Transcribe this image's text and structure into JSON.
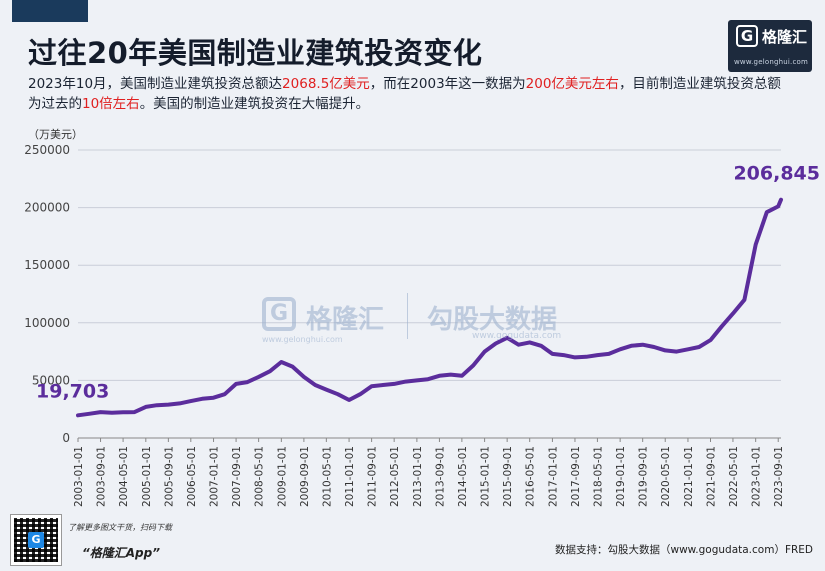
{
  "header": {
    "title": "过往20年美国制造业建筑投资变化",
    "brand_name": "格隆汇",
    "brand_url": "www.gelonghui.com",
    "brand_glyph": "G"
  },
  "description": {
    "part1": "2023年10月，美国制造业建筑投资总额达",
    "hl1": "2068.5亿美元",
    "part2": "，而在2003年这一数据为",
    "hl2": "200亿美元左右",
    "part3": "，目前制造业建筑投资总额为过去的",
    "hl3": "10倍左右",
    "part4": "。美国的制造业建筑投资在大幅提升。"
  },
  "watermark": {
    "name": "格隆汇",
    "url": "www.gelonghui.com",
    "name2": "勾股大数据",
    "url2": "www.gogudata.com"
  },
  "footer": {
    "note": "了解更多图文干货，扫码下载",
    "app": "“格隆汇App”",
    "source": "数据支持：勾股大数据（www.gogudata.com）FRED"
  },
  "colors": {
    "line": "#5b2d9c",
    "highlight": "#e02020",
    "grid": "#c9ced8",
    "background": "#eef1f6"
  },
  "chart_data": {
    "type": "line",
    "unit_label": "（万美元）",
    "ylim": [
      0,
      250000
    ],
    "yticks": [
      0,
      50000,
      100000,
      150000,
      200000,
      250000
    ],
    "xtick_labels": [
      "2003-01-01",
      "2003-09-01",
      "2004-05-01",
      "2005-01-01",
      "2005-09-01",
      "2006-05-01",
      "2007-01-01",
      "2007-09-01",
      "2008-05-01",
      "2009-01-01",
      "2009-09-01",
      "2010-05-01",
      "2011-01-01",
      "2011-09-01",
      "2012-05-01",
      "2013-01-01",
      "2013-09-01",
      "2014-05-01",
      "2015-01-01",
      "2015-09-01",
      "2016-05-01",
      "2017-01-01",
      "2017-09-01",
      "2018-05-01",
      "2019-01-01",
      "2019-09-01",
      "2020-05-01",
      "2021-01-01",
      "2021-09-01",
      "2022-05-01",
      "2023-01-01",
      "2023-09-01"
    ],
    "grid": "horizontal",
    "annotations": [
      {
        "text": "19,703",
        "x": "2003-01-01",
        "y": 19703,
        "color": "#5b2d9c"
      },
      {
        "text": "206,845",
        "x": "2023-10-01",
        "y": 206845,
        "color": "#5b2d9c"
      }
    ],
    "series": [
      {
        "points": [
          [
            "2003-01-01",
            19703
          ],
          [
            "2003-05-01",
            21000
          ],
          [
            "2003-09-01",
            22500
          ],
          [
            "2004-01-01",
            22000
          ],
          [
            "2004-05-01",
            22300
          ],
          [
            "2004-09-01",
            22500
          ],
          [
            "2005-01-01",
            27000
          ],
          [
            "2005-05-01",
            28500
          ],
          [
            "2005-09-01",
            29000
          ],
          [
            "2006-01-01",
            30000
          ],
          [
            "2006-05-01",
            32000
          ],
          [
            "2006-09-01",
            34000
          ],
          [
            "2007-01-01",
            35000
          ],
          [
            "2007-05-01",
            38000
          ],
          [
            "2007-09-01",
            47000
          ],
          [
            "2008-01-01",
            48500
          ],
          [
            "2008-05-01",
            53000
          ],
          [
            "2008-09-01",
            58000
          ],
          [
            "2009-01-01",
            66000
          ],
          [
            "2009-05-01",
            62000
          ],
          [
            "2009-09-01",
            53000
          ],
          [
            "2010-01-01",
            46000
          ],
          [
            "2010-05-01",
            42000
          ],
          [
            "2010-09-01",
            38000
          ],
          [
            "2011-01-01",
            33000
          ],
          [
            "2011-05-01",
            38000
          ],
          [
            "2011-09-01",
            45000
          ],
          [
            "2012-01-01",
            46000
          ],
          [
            "2012-05-01",
            47000
          ],
          [
            "2012-09-01",
            49000
          ],
          [
            "2013-01-01",
            50000
          ],
          [
            "2013-05-01",
            51000
          ],
          [
            "2013-09-01",
            54000
          ],
          [
            "2014-01-01",
            55000
          ],
          [
            "2014-05-01",
            54000
          ],
          [
            "2014-09-01",
            63000
          ],
          [
            "2015-01-01",
            75000
          ],
          [
            "2015-05-01",
            82000
          ],
          [
            "2015-09-01",
            87000
          ],
          [
            "2016-01-01",
            81000
          ],
          [
            "2016-05-01",
            83000
          ],
          [
            "2016-09-01",
            80000
          ],
          [
            "2017-01-01",
            73000
          ],
          [
            "2017-05-01",
            72000
          ],
          [
            "2017-09-01",
            70000
          ],
          [
            "2018-01-01",
            70500
          ],
          [
            "2018-05-01",
            72000
          ],
          [
            "2018-09-01",
            73000
          ],
          [
            "2019-01-01",
            77000
          ],
          [
            "2019-05-01",
            80000
          ],
          [
            "2019-09-01",
            81000
          ],
          [
            "2020-01-01",
            79000
          ],
          [
            "2020-05-01",
            76000
          ],
          [
            "2020-09-01",
            75000
          ],
          [
            "2021-01-01",
            77000
          ],
          [
            "2021-05-01",
            79000
          ],
          [
            "2021-09-01",
            85000
          ],
          [
            "2022-01-01",
            97000
          ],
          [
            "2022-05-01",
            108000
          ],
          [
            "2022-09-01",
            120000
          ],
          [
            "2023-01-01",
            168000
          ],
          [
            "2023-05-01",
            196000
          ],
          [
            "2023-09-01",
            201000
          ],
          [
            "2023-10-01",
            206845
          ]
        ]
      }
    ]
  }
}
